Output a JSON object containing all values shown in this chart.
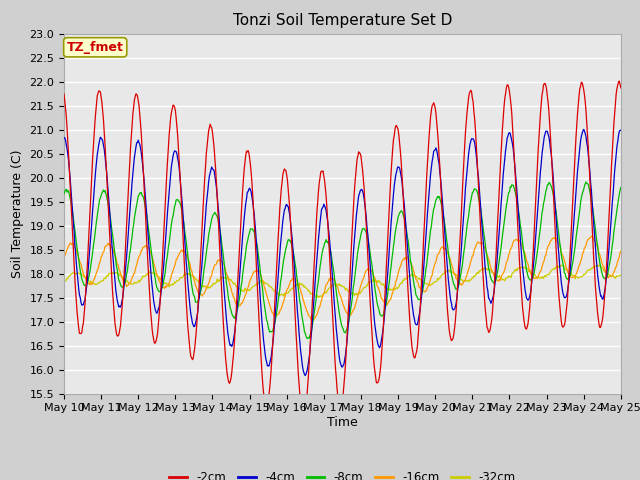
{
  "title": "Tonzi Soil Temperature Set D",
  "xlabel": "Time",
  "ylabel": "Soil Temperature (C)",
  "ylim": [
    15.5,
    23.0
  ],
  "yticks": [
    15.5,
    16.0,
    16.5,
    17.0,
    17.5,
    18.0,
    18.5,
    19.0,
    19.5,
    20.0,
    20.5,
    21.0,
    21.5,
    22.0,
    22.5,
    23.0
  ],
  "colors": {
    "-2cm": "#dd0000",
    "-4cm": "#0000cc",
    "-8cm": "#00bb00",
    "-16cm": "#ff9900",
    "-32cm": "#cccc00"
  },
  "legend_label": "TZ_fmet",
  "legend_box_facecolor": "#ffffcc",
  "legend_box_edgecolor": "#999900",
  "background_color": "#e8e8e8",
  "grid_color": "#ffffff",
  "title_fontsize": 11,
  "axis_fontsize": 9,
  "tick_fontsize": 8
}
